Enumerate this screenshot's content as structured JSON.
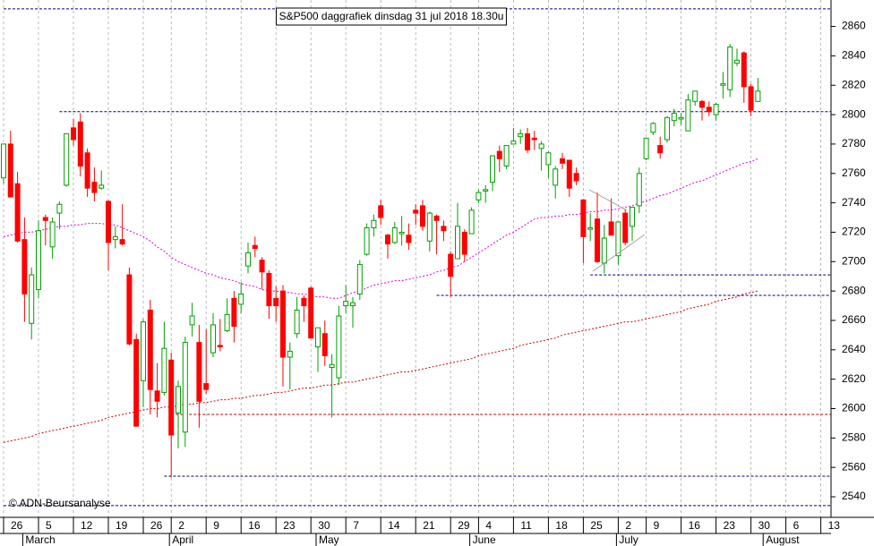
{
  "chart_data": {
    "type": "candlestick",
    "title": "S&P500 daggrafiek dinsdag 31 jul 2018 18.30u",
    "copyright": "© ADN-Beursanalyse",
    "categories": [
      "26",
      null,
      null,
      null,
      null,
      "5",
      null,
      null,
      null,
      null,
      "12",
      null,
      null,
      null,
      null,
      "19",
      null,
      null,
      null,
      null,
      "26",
      null,
      null,
      null,
      "2",
      null,
      null,
      null,
      null,
      "9",
      null,
      null,
      null,
      null,
      "16",
      null,
      null,
      null,
      null,
      "23",
      null,
      null,
      null,
      null,
      "30",
      null,
      null,
      null,
      null,
      "7",
      null,
      null,
      null,
      null,
      "14",
      null,
      null,
      null,
      null,
      "21",
      null,
      null,
      null,
      null,
      "29",
      null,
      null,
      null,
      "4",
      null,
      null,
      null,
      null,
      "11",
      null,
      null,
      null,
      null,
      "18",
      null,
      null,
      null,
      null,
      "25",
      null,
      null,
      null,
      null,
      "2",
      null,
      null,
      null,
      "9",
      null,
      null,
      null,
      null,
      "16",
      null,
      null,
      null,
      null,
      "23",
      null,
      null,
      null,
      null,
      "30",
      null,
      null,
      null,
      null,
      "6",
      null,
      null,
      null,
      null,
      "13"
    ],
    "months": [
      null,
      null,
      null,
      "March",
      null,
      null,
      null,
      null,
      null,
      null,
      null,
      null,
      null,
      null,
      null,
      null,
      null,
      null,
      null,
      null,
      null,
      null,
      null,
      null,
      "April",
      null,
      null,
      null,
      null,
      null,
      null,
      null,
      null,
      null,
      null,
      null,
      null,
      null,
      null,
      null,
      null,
      null,
      null,
      null,
      null,
      "May",
      null,
      null,
      null,
      null,
      null,
      null,
      null,
      null,
      null,
      null,
      null,
      null,
      null,
      null,
      null,
      null,
      null,
      null,
      null,
      null,
      null,
      "June",
      null,
      null,
      null,
      null,
      null,
      null,
      null,
      null,
      null,
      null,
      null,
      null,
      null,
      null,
      null,
      null,
      null,
      null,
      null,
      null,
      "July",
      null,
      null,
      null,
      null,
      null,
      null,
      null,
      null,
      null,
      null,
      null,
      null,
      null,
      null,
      null,
      null,
      null,
      null,
      null,
      null,
      "August",
      null,
      null,
      null,
      null,
      null,
      null,
      null,
      null
    ],
    "open": [
      2757,
      2780,
      2753,
      2715,
      2658,
      2681,
      2730,
      2710,
      2733,
      2752,
      2791,
      2795,
      2774,
      2754,
      2750,
      2741,
      2715,
      2715,
      2691,
      2647,
      2619,
      2667,
      2612,
      2611,
      2633,
      2597,
      2584,
      2657,
      2645,
      2617,
      2638,
      2643,
      2653,
      2675,
      2671,
      2697,
      2711,
      2701,
      2692,
      2675,
      2680,
      2635,
      2651,
      2675,
      2682,
      2642,
      2651,
      2628,
      2621,
      2670,
      2670,
      2678,
      2705,
      2723,
      2738,
      2718,
      2713,
      2719,
      2718,
      2735,
      2738,
      2714,
      2731,
      2724,
      2705,
      2702,
      2720,
      2719,
      2742,
      2748,
      2754,
      2775,
      2765,
      2780,
      2785,
      2787,
      2784,
      2777,
      2766,
      2752,
      2770,
      2769,
      2760,
      2742,
      2722,
      2729,
      2699,
      2727,
      2704,
      2733,
      2724,
      2738,
      2770,
      2788,
      2779,
      2783,
      2796,
      2797,
      2789,
      2809,
      2809,
      2805,
      2800,
      2820,
      2817,
      2835,
      2842,
      2819,
      2809,
      null,
      null,
      null,
      null,
      null,
      null,
      null,
      null,
      null
    ],
    "high": [
      2780,
      2789,
      2761,
      2730,
      2696,
      2728,
      2732,
      2730,
      2741,
      2786,
      2797,
      2801,
      2777,
      2764,
      2762,
      2742,
      2724,
      2739,
      2696,
      2651,
      2661,
      2674,
      2631,
      2659,
      2638,
      2619,
      2649,
      2672,
      2657,
      2654,
      2665,
      2661,
      2675,
      2680,
      2686,
      2713,
      2717,
      2703,
      2694,
      2683,
      2684,
      2645,
      2676,
      2677,
      2683,
      2655,
      2660,
      2637,
      2670,
      2684,
      2676,
      2701,
      2726,
      2732,
      2742,
      2719,
      2727,
      2731,
      2726,
      2739,
      2742,
      2734,
      2732,
      2728,
      2707,
      2740,
      2722,
      2737,
      2749,
      2752,
      2772,
      2779,
      2779,
      2791,
      2790,
      2791,
      2789,
      2782,
      2775,
      2765,
      2774,
      2769,
      2764,
      2742,
      2733,
      2747,
      2725,
      2743,
      2727,
      2736,
      2737,
      2764,
      2784,
      2795,
      2785,
      2799,
      2804,
      2801,
      2814,
      2816,
      2810,
      2809,
      2808,
      2829,
      2848,
      2845,
      2843,
      2821,
      2825,
      null,
      null,
      null,
      null,
      null,
      null,
      null,
      null,
      null
    ],
    "low": [
      2753,
      2744,
      2713,
      2659,
      2647,
      2675,
      2711,
      2702,
      2722,
      2751,
      2779,
      2758,
      2744,
      2741,
      2749,
      2694,
      2709,
      2711,
      2643,
      2588,
      2601,
      2596,
      2594,
      2609,
      2553,
      2573,
      2574,
      2649,
      2587,
      2610,
      2635,
      2639,
      2652,
      2645,
      2665,
      2692,
      2703,
      2681,
      2661,
      2659,
      2615,
      2613,
      2648,
      2659,
      2648,
      2625,
      2629,
      2594,
      2616,
      2665,
      2655,
      2674,
      2704,
      2717,
      2725,
      2702,
      2712,
      2711,
      2708,
      2725,
      2721,
      2707,
      2705,
      2714,
      2676,
      2702,
      2700,
      2719,
      2740,
      2740,
      2748,
      2761,
      2763,
      2780,
      2780,
      2774,
      2776,
      2762,
      2757,
      2743,
      2763,
      2744,
      2752,
      2699,
      2714,
      2699,
      2692,
      2718,
      2698,
      2711,
      2714,
      2733,
      2769,
      2786,
      2770,
      2781,
      2792,
      2793,
      2789,
      2806,
      2796,
      2799,
      2796,
      2811,
      2812,
      2833,
      2808,
      2799,
      2809,
      null,
      null,
      null,
      null,
      null,
      null,
      null,
      null,
      null
    ],
    "close": [
      2780,
      2744,
      2714,
      2678,
      2691,
      2721,
      2728,
      2727,
      2739,
      2787,
      2783,
      2765,
      2750,
      2747,
      2752,
      2713,
      2717,
      2712,
      2644,
      2588,
      2659,
      2613,
      2605,
      2641,
      2582,
      2615,
      2645,
      2663,
      2605,
      2613,
      2657,
      2642,
      2664,
      2656,
      2678,
      2706,
      2709,
      2693,
      2670,
      2670,
      2635,
      2639,
      2667,
      2670,
      2648,
      2655,
      2636,
      2630,
      2663,
      2673,
      2672,
      2698,
      2723,
      2728,
      2730,
      2712,
      2723,
      2720,
      2713,
      2733,
      2724,
      2733,
      2728,
      2721,
      2690,
      2724,
      2705,
      2735,
      2747,
      2749,
      2772,
      2770,
      2779,
      2782,
      2787,
      2776,
      2783,
      2780,
      2774,
      2763,
      2767,
      2750,
      2755,
      2717,
      2723,
      2700,
      2716,
      2718,
      2727,
      2713,
      2737,
      2760,
      2784,
      2794,
      2774,
      2798,
      2801,
      2798,
      2810,
      2816,
      2805,
      2802,
      2807,
      2821,
      2846,
      2837,
      2819,
      2803,
      2816,
      null,
      null,
      null,
      null,
      null,
      null,
      null,
      null,
      null
    ],
    "up_color": "#00a000",
    "down_color": "#ff0000",
    "lines": [
      {
        "color": "#e000e0",
        "style": "dashed",
        "values": [
          2717,
          2718,
          2719,
          2720,
          2720,
          2721,
          2722,
          2723,
          2724,
          2724,
          2725,
          2725,
          2726,
          2726,
          2726,
          2725,
          2725,
          2723,
          2721,
          2719,
          2717,
          2714,
          2710,
          2707,
          2703,
          2700,
          2698,
          2696,
          2694,
          2692,
          2691,
          2689,
          2688,
          2687,
          2685,
          2684,
          2683,
          2681,
          2680,
          2680,
          2679,
          2679,
          2678,
          2678,
          2677,
          2676,
          2676,
          2675,
          2675,
          2677,
          2679,
          2680,
          2682,
          2684,
          2685,
          2686,
          2687,
          2687,
          2688,
          2689,
          2690,
          2691,
          2693,
          2694,
          2696,
          2697,
          2700,
          2703,
          2706,
          2709,
          2712,
          2715,
          2718,
          2720,
          2723,
          2726,
          2729,
          2730,
          2730,
          2731,
          2731,
          2732,
          2732,
          2733,
          2734,
          2734,
          2735,
          2735,
          2736,
          2737,
          2738,
          2740,
          2741,
          2743,
          2745,
          2746,
          2748,
          2750,
          2752,
          2754,
          2755,
          2757,
          2759,
          2761,
          2763,
          2765,
          2767,
          2768,
          2770,
          null,
          null,
          null,
          null,
          null,
          null,
          null,
          null,
          null
        ]
      },
      {
        "color": "#d00000",
        "style": "dashed",
        "values": [
          2577,
          2578,
          2579,
          2580,
          2581,
          2583,
          2584,
          2585,
          2586,
          2587,
          2588,
          2589,
          2590,
          2591,
          2592,
          2594,
          2595,
          2596,
          2597,
          2598,
          2599,
          2600,
          2600,
          2601,
          2601,
          2602,
          2603,
          2603,
          2604,
          2604,
          2605,
          2606,
          2606,
          2607,
          2607,
          2608,
          2609,
          2609,
          2610,
          2611,
          2611,
          2612,
          2613,
          2614,
          2614,
          2615,
          2616,
          2616,
          2617,
          2618,
          2618,
          2619,
          2620,
          2621,
          2622,
          2623,
          2624,
          2625,
          2625,
          2626,
          2627,
          2628,
          2629,
          2630,
          2631,
          2632,
          2633,
          2634,
          2636,
          2637,
          2638,
          2639,
          2640,
          2641,
          2643,
          2644,
          2645,
          2646,
          2647,
          2648,
          2650,
          2651,
          2652,
          2653,
          2654,
          2655,
          2656,
          2657,
          2658,
          2659,
          2659,
          2660,
          2661,
          2662,
          2663,
          2664,
          2665,
          2666,
          2668,
          2669,
          2670,
          2671,
          2673,
          2674,
          2675,
          2676,
          2678,
          2679,
          2680,
          null,
          null,
          null,
          null,
          null,
          null,
          null,
          null,
          null
        ]
      }
    ],
    "levels": [
      {
        "value": 2872,
        "from": 0,
        "color": "#000080"
      },
      {
        "value": 2802,
        "from": 8,
        "color": "#000080"
      },
      {
        "value": 2691,
        "from": 84,
        "color": "#000080"
      },
      {
        "value": 2677,
        "from": 62,
        "color": "#000080"
      },
      {
        "value": 2596,
        "from": 24,
        "color": "#c00000"
      },
      {
        "value": 2554,
        "from": 23,
        "color": "#000080"
      },
      {
        "value": 2534,
        "from": 0,
        "color": "#000080"
      }
    ],
    "ylim": [
      2526,
      2878
    ],
    "yticks": [
      2540,
      2560,
      2580,
      2600,
      2620,
      2640,
      2660,
      2680,
      2700,
      2720,
      2740,
      2760,
      2780,
      2800,
      2820,
      2840,
      2860
    ],
    "grid": true
  }
}
